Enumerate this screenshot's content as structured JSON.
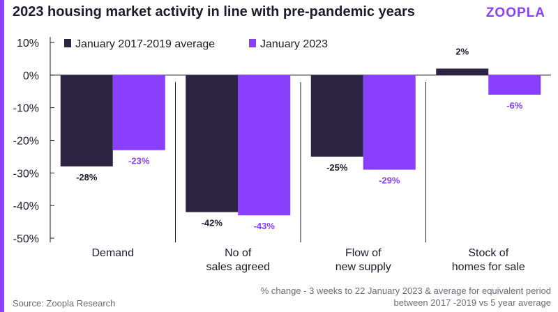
{
  "header": {
    "title": "2023 housing market activity in line with pre-pandemic years",
    "logo_text": "ZOOPLA"
  },
  "footer": {
    "source": "Source: Zoopla Research",
    "note_line1": "% change - 3 weeks to 22 January 2023 & average for equivalent period",
    "note_line2": "between 2017 -2019 vs 5 year average"
  },
  "colors": {
    "dark": "#2b2442",
    "purple": "#8a3ffc",
    "accent": "#8a3ffc"
  },
  "chart_data": {
    "type": "bar",
    "title": "2023 housing market activity in line with pre-pandemic years",
    "categories": [
      [
        "Demand"
      ],
      [
        "No of",
        "sales agreed"
      ],
      [
        "Flow of",
        "new supply"
      ],
      [
        "Stock of",
        "homes for sale"
      ]
    ],
    "series": [
      {
        "name": "January 2017-2019 average",
        "color": "#2b2442",
        "values": [
          -28,
          -42,
          -25,
          2
        ],
        "labels": [
          "-28%",
          "-42%",
          "-25%",
          "2%"
        ]
      },
      {
        "name": "January 2023",
        "color": "#8a3ffc",
        "values": [
          -23,
          -43,
          -29,
          -6
        ],
        "labels": [
          "-23%",
          "-43%",
          "-29%",
          "-6%"
        ]
      }
    ],
    "yticks": [
      "10%",
      "0%",
      "-10%",
      "-20%",
      "-30%",
      "-40%",
      "-50%"
    ],
    "ytick_values": [
      10,
      0,
      -10,
      -20,
      -30,
      -40,
      -50
    ],
    "ylim": [
      -50,
      10
    ],
    "legend_position": "top",
    "grid": false
  }
}
